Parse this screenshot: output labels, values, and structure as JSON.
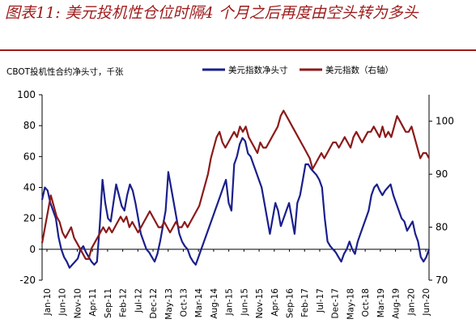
{
  "header": {
    "title": "图表11: 美元投机性仓位时隔4 个月之后再度由空头转为多头"
  },
  "chart_data": {
    "type": "line",
    "ylabel_left": "CBOT投机性合约净头寸，千张",
    "left_ylim": [
      -20,
      100
    ],
    "left_ticks": [
      "-20",
      "0",
      "20",
      "40",
      "60",
      "80",
      "100"
    ],
    "right_ylim": [
      70,
      105
    ],
    "right_ticks": [
      "70",
      "80",
      "90",
      "100"
    ],
    "x_ticks": [
      "Jan-10",
      "Jun-10",
      "Nov-10",
      "Apr-11",
      "Sep-11",
      "Feb-12",
      "Jul-12",
      "Dec-12",
      "May-13",
      "Oct-13",
      "Mar-14",
      "Aug-14",
      "Jan-15",
      "Jun-15",
      "Nov-15",
      "Apr-16",
      "Sep-16",
      "Feb-17",
      "Jul-17",
      "Dec-17",
      "May-18",
      "Oct-18",
      "Mar-19",
      "Aug-19",
      "Jan-20",
      "Jun-20"
    ],
    "grid": false,
    "legend_position": "top",
    "series": [
      {
        "name": "美元指数净头寸",
        "axis": "left",
        "color": "#1a1f8c",
        "x_index_step_months": 1,
        "values": [
          32,
          40,
          38,
          30,
          25,
          20,
          8,
          0,
          -5,
          -8,
          -12,
          -10,
          -8,
          -6,
          0,
          2,
          -2,
          -5,
          -8,
          -10,
          -8,
          15,
          45,
          30,
          20,
          18,
          30,
          42,
          35,
          28,
          25,
          35,
          42,
          38,
          30,
          20,
          10,
          5,
          0,
          -2,
          -5,
          -8,
          -3,
          5,
          15,
          25,
          50,
          40,
          30,
          20,
          10,
          5,
          2,
          0,
          -5,
          -8,
          -10,
          -5,
          0,
          5,
          10,
          15,
          20,
          25,
          30,
          35,
          40,
          45,
          30,
          25,
          55,
          60,
          68,
          72,
          70,
          62,
          60,
          55,
          50,
          45,
          40,
          30,
          20,
          10,
          20,
          30,
          25,
          15,
          20,
          25,
          30,
          20,
          10,
          30,
          35,
          45,
          55,
          55,
          52,
          50,
          48,
          45,
          40,
          20,
          5,
          2,
          0,
          -2,
          -5,
          -8,
          -3,
          0,
          5,
          0,
          -3,
          5,
          10,
          15,
          20,
          25,
          35,
          40,
          42,
          38,
          35,
          38,
          40,
          42,
          35,
          30,
          25,
          20,
          18,
          12,
          15,
          18,
          10,
          5,
          -5,
          -8,
          -5,
          0
        ]
      },
      {
        "name": "美元指数（右轴）",
        "axis": "right",
        "color": "#8b1a1a",
        "x_index_step_months": 1,
        "values": [
          77,
          80,
          83,
          86,
          84,
          82,
          81,
          79,
          78,
          79,
          80,
          78,
          77,
          76,
          75,
          74,
          74,
          76,
          77,
          78,
          79,
          80,
          79,
          80,
          79,
          80,
          81,
          82,
          81,
          82,
          80,
          81,
          80,
          79,
          80,
          81,
          82,
          83,
          82,
          81,
          80,
          80,
          81,
          80,
          79,
          80,
          81,
          80,
          80,
          81,
          80,
          81,
          82,
          83,
          84,
          86,
          88,
          90,
          93,
          95,
          97,
          98,
          96,
          95,
          96,
          97,
          98,
          97,
          99,
          98,
          99,
          97,
          96,
          95,
          94,
          96,
          95,
          95,
          96,
          97,
          98,
          99,
          101,
          102,
          101,
          100,
          99,
          98,
          97,
          96,
          95,
          94,
          93,
          91,
          92,
          93,
          94,
          93,
          94,
          95,
          96,
          96,
          95,
          96,
          97,
          96,
          95,
          97,
          98,
          97,
          96,
          97,
          98,
          98,
          99,
          98,
          97,
          99,
          97,
          98,
          97,
          99,
          101,
          100,
          99,
          98,
          98,
          99,
          97,
          95,
          93,
          94,
          94,
          93
        ]
      }
    ]
  }
}
